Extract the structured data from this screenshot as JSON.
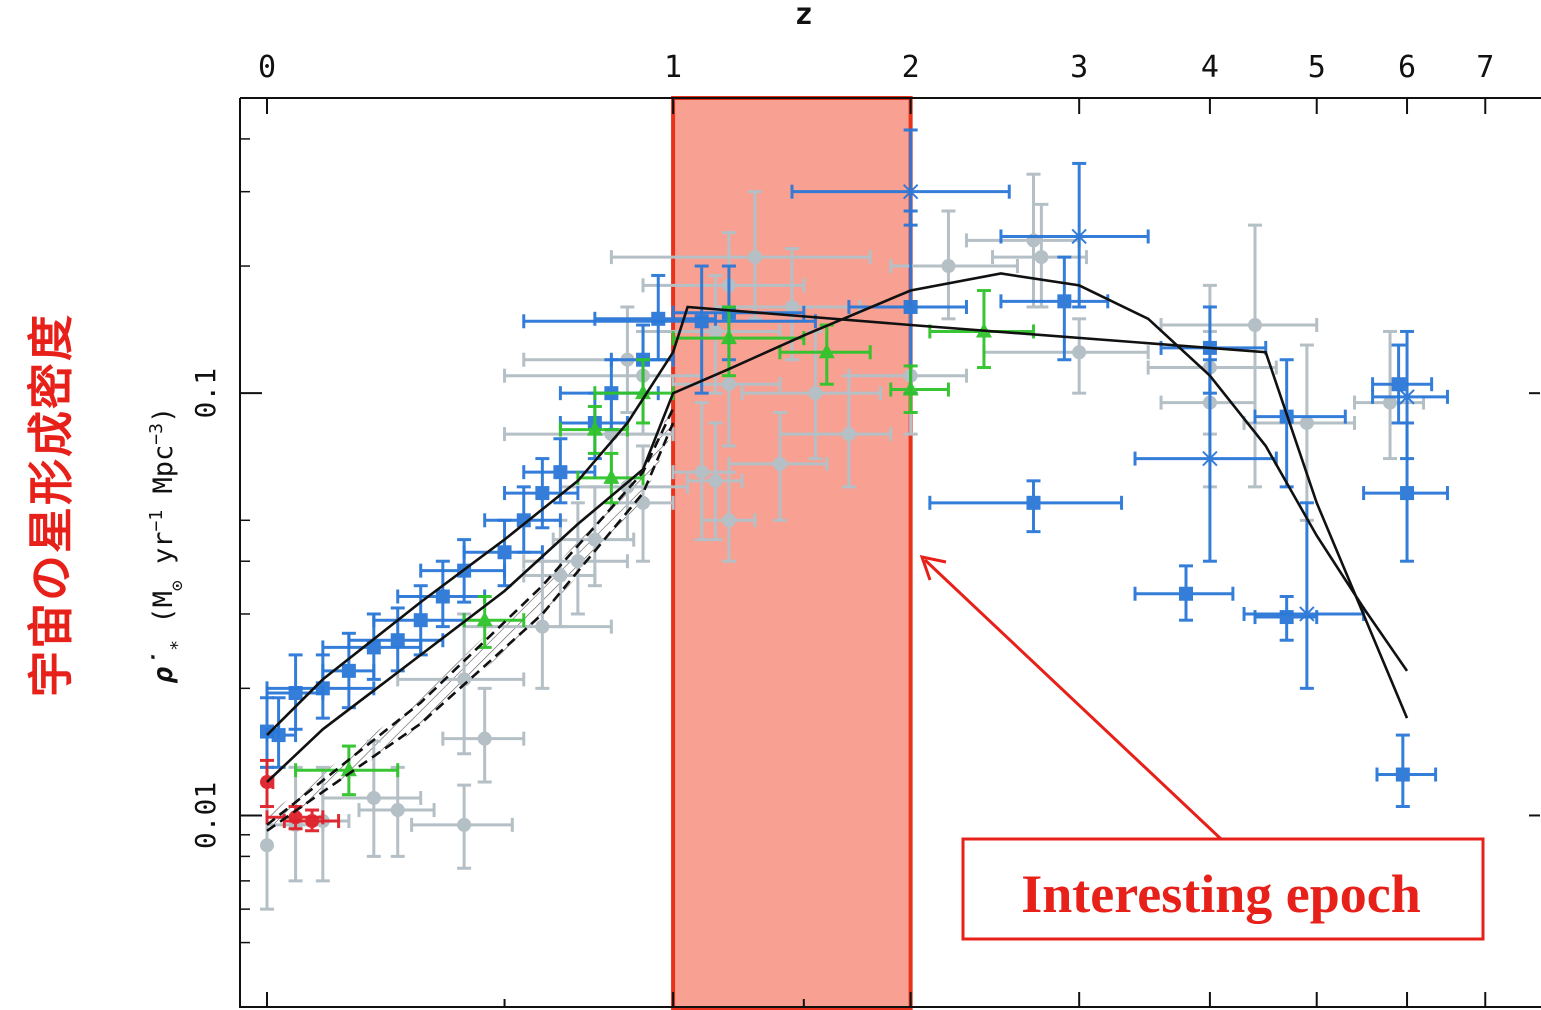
{
  "side_label": "宇宙の星形成密度",
  "annotation": {
    "text": "Interesting epoch",
    "color": "#e8201a"
  },
  "colors": {
    "grey": "#b4bfc6",
    "blue": "#2a78d8",
    "green": "#2fc42a",
    "red": "#e0202a",
    "highlight_fill": "#f8a091",
    "highlight_stroke": "#e8321c",
    "curve": "#111111"
  },
  "chart_data": {
    "type": "scatter",
    "title": "",
    "xlabel": "z",
    "ylabel_prefix": "ρ̇",
    "ylabel_sub": "*",
    "ylabel_main": " (M",
    "ylabel_sun": "⊙",
    "ylabel_yr": " yr",
    "ylabel_exp1": "−1",
    "ylabel_mpc": " Mpc",
    "ylabel_exp2": "−3",
    "ylabel_close": ")",
    "x_scale": "log(1+z)",
    "y_scale": "log",
    "xlim": [
      0,
      7.6
    ],
    "ylim": [
      0.0035,
      0.5
    ],
    "x_ticks": [
      0,
      1,
      2,
      3,
      4,
      5,
      6,
      7
    ],
    "x_tick_labels": [
      "0",
      "1",
      "2",
      "3",
      "4",
      "5",
      "6",
      "7"
    ],
    "y_ticks": [
      0.01,
      0.1
    ],
    "y_tick_labels": [
      "0.01",
      "0.1"
    ],
    "highlight": {
      "x_from": 1,
      "x_to": 2,
      "label": "Interesting epoch"
    },
    "series": [
      {
        "color": "grey",
        "marker": "circle",
        "points": [
          [
            0.0,
            0.0085,
            0.03,
            0.0,
            0.006,
            0.013
          ],
          [
            0.05,
            0.0095,
            0.05,
            0.05,
            0.007,
            0.013
          ],
          [
            0.1,
            0.0097,
            0.05,
            0.05,
            0.007,
            0.013
          ],
          [
            0.2,
            0.011,
            0.1,
            0.1,
            0.008,
            0.015
          ],
          [
            0.25,
            0.0103,
            0.08,
            0.08,
            0.008,
            0.013
          ],
          [
            0.4,
            0.0095,
            0.12,
            0.12,
            0.0075,
            0.0118
          ],
          [
            0.45,
            0.0152,
            0.1,
            0.1,
            0.012,
            0.02
          ],
          [
            0.4,
            0.021,
            0.15,
            0.15,
            0.014,
            0.03
          ],
          [
            0.6,
            0.028,
            0.2,
            0.2,
            0.02,
            0.04
          ],
          [
            0.65,
            0.037,
            0.1,
            0.1,
            0.028,
            0.05
          ],
          [
            0.7,
            0.04,
            0.15,
            0.15,
            0.03,
            0.055
          ],
          [
            0.75,
            0.045,
            0.12,
            0.12,
            0.035,
            0.06
          ],
          [
            0.85,
            0.06,
            0.2,
            0.2,
            0.045,
            0.08
          ],
          [
            0.9,
            0.055,
            0.1,
            0.1,
            0.04,
            0.075
          ],
          [
            0.8,
            0.08,
            0.3,
            0.2,
            0.06,
            0.1
          ],
          [
            0.9,
            0.11,
            0.4,
            0.2,
            0.08,
            0.14
          ],
          [
            0.85,
            0.12,
            0.3,
            0.15,
            0.09,
            0.16
          ],
          [
            1.1,
            0.065,
            0.1,
            0.1,
            0.045,
            0.095
          ],
          [
            1.15,
            0.062,
            0.1,
            0.1,
            0.045,
            0.085
          ],
          [
            1.2,
            0.05,
            0.1,
            0.1,
            0.04,
            0.065
          ],
          [
            1.2,
            0.105,
            0.2,
            0.2,
            0.075,
            0.15
          ],
          [
            1.15,
            0.14,
            0.25,
            0.25,
            0.1,
            0.19
          ],
          [
            1.2,
            0.18,
            0.3,
            0.3,
            0.14,
            0.24
          ],
          [
            1.3,
            0.21,
            0.5,
            0.5,
            0.15,
            0.3
          ],
          [
            1.4,
            0.068,
            0.2,
            0.2,
            0.05,
            0.09
          ],
          [
            1.45,
            0.16,
            0.3,
            0.3,
            0.12,
            0.22
          ],
          [
            1.55,
            0.1,
            0.3,
            0.3,
            0.07,
            0.14
          ],
          [
            1.7,
            0.08,
            0.3,
            0.2,
            0.06,
            0.11
          ],
          [
            2.0,
            0.11,
            0.3,
            0.3,
            0.08,
            0.16
          ],
          [
            2.2,
            0.2,
            0.3,
            0.4,
            0.15,
            0.27
          ],
          [
            2.75,
            0.21,
            0.3,
            0.3,
            0.16,
            0.28
          ],
          [
            2.7,
            0.23,
            0.4,
            0.3,
            0.16,
            0.33
          ],
          [
            3.0,
            0.125,
            0.6,
            0.5,
            0.1,
            0.15
          ],
          [
            4.0,
            0.115,
            0.5,
            0.6,
            0.08,
            0.18
          ],
          [
            4.4,
            0.145,
            0.8,
            0.6,
            0.06,
            0.25
          ],
          [
            4.0,
            0.095,
            0.4,
            0.4,
            0.06,
            0.14
          ],
          [
            4.9,
            0.085,
            0.6,
            0.5,
            0.05,
            0.13
          ],
          [
            5.8,
            0.095,
            0.4,
            0.4,
            0.07,
            0.14
          ]
        ]
      },
      {
        "color": "blue",
        "marker": "square",
        "points": [
          [
            0.0,
            0.0158,
            0.02,
            0.02,
            0.013,
            0.019
          ],
          [
            0.02,
            0.0155,
            0.03,
            0.03,
            0.013,
            0.019
          ],
          [
            0.05,
            0.0195,
            0.05,
            0.05,
            0.016,
            0.024
          ],
          [
            0.1,
            0.02,
            0.1,
            0.1,
            0.017,
            0.024
          ],
          [
            0.15,
            0.022,
            0.05,
            0.05,
            0.018,
            0.027
          ],
          [
            0.2,
            0.025,
            0.1,
            0.1,
            0.021,
            0.03
          ],
          [
            0.25,
            0.026,
            0.1,
            0.1,
            0.022,
            0.031
          ],
          [
            0.3,
            0.029,
            0.1,
            0.1,
            0.024,
            0.035
          ],
          [
            0.35,
            0.033,
            0.1,
            0.1,
            0.028,
            0.04
          ],
          [
            0.4,
            0.038,
            0.1,
            0.1,
            0.032,
            0.045
          ],
          [
            0.5,
            0.042,
            0.1,
            0.1,
            0.035,
            0.05
          ],
          [
            0.55,
            0.05,
            0.1,
            0.1,
            0.042,
            0.06
          ],
          [
            0.6,
            0.058,
            0.1,
            0.1,
            0.048,
            0.07
          ],
          [
            0.65,
            0.065,
            0.1,
            0.1,
            0.055,
            0.078
          ],
          [
            0.75,
            0.085,
            0.1,
            0.1,
            0.07,
            0.1
          ],
          [
            0.8,
            0.1,
            0.15,
            0.15,
            0.082,
            0.12
          ],
          [
            0.9,
            0.12,
            0.1,
            0.1,
            0.1,
            0.145
          ],
          [
            0.95,
            0.15,
            0.2,
            0.2,
            0.12,
            0.19
          ],
          [
            1.1,
            0.148,
            0.55,
            0.45,
            0.1,
            0.2
          ],
          [
            1.2,
            0.155,
            0.2,
            0.3,
            0.12,
            0.2
          ],
          [
            2.0,
            0.16,
            0.3,
            0.3,
            0.1,
            0.27
          ],
          [
            2.9,
            0.165,
            0.4,
            0.3,
            0.12,
            0.21
          ],
          [
            4.0,
            0.128,
            0.4,
            0.5,
            0.1,
            0.16
          ],
          [
            2.7,
            0.055,
            0.6,
            0.6,
            0.047,
            0.062
          ],
          [
            3.8,
            0.0335,
            0.4,
            0.4,
            0.029,
            0.039
          ],
          [
            4.7,
            0.0295,
            0.3,
            0.3,
            0.026,
            0.033
          ],
          [
            4.7,
            0.088,
            0.3,
            0.6,
            0.06,
            0.12
          ],
          [
            5.9,
            0.105,
            0.3,
            0.4,
            0.085,
            0.13
          ],
          [
            6.0,
            0.058,
            0.5,
            0.5,
            0.04,
            0.085
          ],
          [
            5.95,
            0.0125,
            0.3,
            0.4,
            0.0105,
            0.0155
          ]
        ]
      },
      {
        "color": "blue",
        "marker": "cross",
        "points": [
          [
            2.0,
            0.3,
            0.55,
            0.55,
            0.25,
            0.42
          ],
          [
            3.0,
            0.235,
            0.5,
            0.5,
            0.16,
            0.35
          ],
          [
            4.0,
            0.07,
            0.6,
            0.6,
            0.04,
            0.12
          ],
          [
            4.9,
            0.03,
            0.6,
            0.6,
            0.02,
            0.055
          ],
          [
            6.0,
            0.098,
            0.4,
            0.5,
            0.07,
            0.14
          ]
        ]
      },
      {
        "color": "green",
        "marker": "triangle",
        "points": [
          [
            0.15,
            0.0128,
            0.1,
            0.1,
            0.0112,
            0.0146
          ],
          [
            0.45,
            0.029,
            0.05,
            0.1,
            0.025,
            0.033
          ],
          [
            0.8,
            0.063,
            0.1,
            0.1,
            0.055,
            0.072
          ],
          [
            0.75,
            0.082,
            0.1,
            0.1,
            0.072,
            0.093
          ],
          [
            0.9,
            0.1,
            0.15,
            0.1,
            0.085,
            0.12
          ],
          [
            1.2,
            0.135,
            0.2,
            0.3,
            0.11,
            0.16
          ],
          [
            1.6,
            0.125,
            0.2,
            0.2,
            0.105,
            0.145
          ],
          [
            2.0,
            0.102,
            0.1,
            0.2,
            0.09,
            0.116
          ],
          [
            2.4,
            0.14,
            0.3,
            0.3,
            0.115,
            0.175
          ]
        ]
      },
      {
        "color": "red",
        "marker": "circle",
        "points": [
          [
            0.0,
            0.012,
            0.01,
            0.01,
            0.0105,
            0.0135
          ],
          [
            0.05,
            0.0099,
            0.05,
            0.05,
            0.0093,
            0.0105
          ],
          [
            0.08,
            0.0097,
            0.05,
            0.05,
            0.0092,
            0.0103
          ]
        ]
      }
    ],
    "fits": [
      {
        "color": "curve",
        "style": "solid",
        "points": [
          [
            0,
            0.0155
          ],
          [
            0.1,
            0.021
          ],
          [
            0.3,
            0.032
          ],
          [
            0.5,
            0.045
          ],
          [
            0.7,
            0.062
          ],
          [
            0.85,
            0.085
          ],
          [
            1.0,
            0.125
          ],
          [
            1.05,
            0.16
          ],
          [
            2.0,
            0.145
          ],
          [
            4.5,
            0.125
          ],
          [
            5.0,
            0.055
          ],
          [
            6.0,
            0.017
          ]
        ]
      },
      {
        "color": "curve",
        "style": "solid",
        "points": [
          [
            0,
            0.012
          ],
          [
            0.1,
            0.016
          ],
          [
            0.3,
            0.024
          ],
          [
            0.5,
            0.034
          ],
          [
            0.7,
            0.049
          ],
          [
            0.9,
            0.066
          ],
          [
            1.0,
            0.1
          ],
          [
            1.2,
            0.114
          ],
          [
            1.5,
            0.137
          ],
          [
            2.0,
            0.175
          ],
          [
            2.5,
            0.192
          ],
          [
            3.0,
            0.18
          ],
          [
            3.5,
            0.15
          ],
          [
            4.0,
            0.11
          ],
          [
            4.5,
            0.075
          ],
          [
            5.0,
            0.046
          ],
          [
            5.5,
            0.031
          ],
          [
            6.0,
            0.022
          ]
        ]
      },
      {
        "color": "curve",
        "style": "dashed",
        "points": [
          [
            0,
            0.0095
          ],
          [
            0.3,
            0.0185
          ],
          [
            0.6,
            0.035
          ],
          [
            0.9,
            0.065
          ],
          [
            1.0,
            0.092
          ]
        ]
      },
      {
        "color": "curve",
        "style": "dashed",
        "points": [
          [
            0,
            0.0092
          ],
          [
            0.3,
            0.0165
          ],
          [
            0.6,
            0.03
          ],
          [
            0.9,
            0.058
          ],
          [
            1.0,
            0.085
          ]
        ]
      }
    ],
    "band": {
      "upper": [
        [
          0,
          0.01
        ],
        [
          0.3,
          0.019
        ],
        [
          0.6,
          0.036
        ],
        [
          0.9,
          0.066
        ],
        [
          1.0,
          0.095
        ]
      ],
      "lower": [
        [
          0,
          0.0092
        ],
        [
          0.3,
          0.0162
        ],
        [
          0.6,
          0.0295
        ],
        [
          0.9,
          0.056
        ],
        [
          1.0,
          0.082
        ]
      ]
    }
  }
}
